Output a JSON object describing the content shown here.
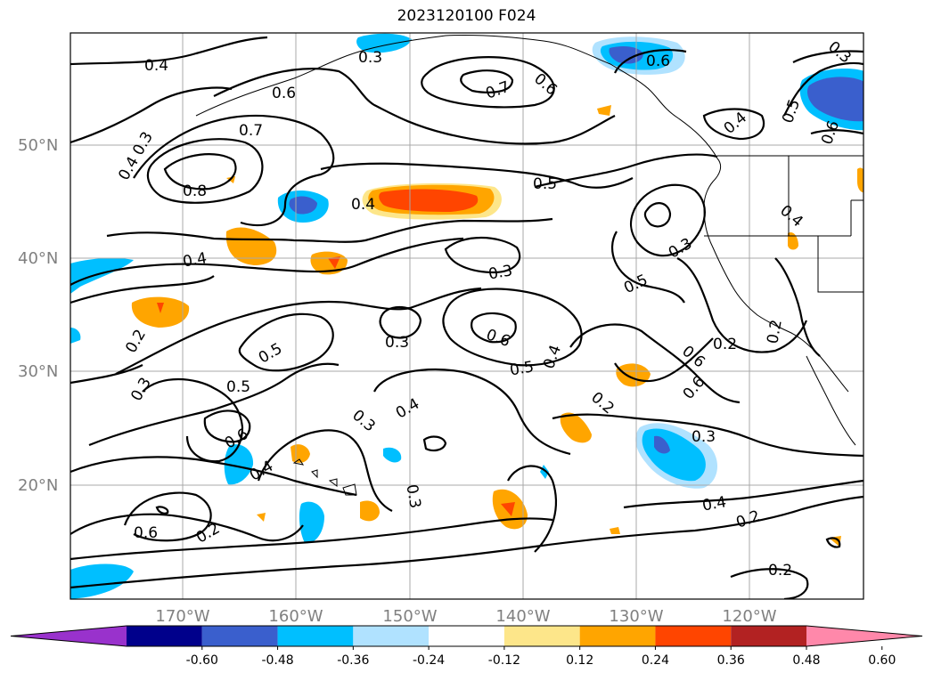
{
  "title": "2023120100 F024",
  "lat_labels": [
    "50°N",
    "40°N",
    "30°N",
    "20°N"
  ],
  "lon_labels": [
    "170°W",
    "160°W",
    "150°W",
    "140°W",
    "130°W",
    "120°W"
  ],
  "colorbar": {
    "ticks": [
      "-0.60",
      "-0.48",
      "-0.36",
      "-0.24",
      "-0.12",
      "0.12",
      "0.24",
      "0.36",
      "0.48",
      "0.60"
    ],
    "colors": [
      "#9932cc",
      "#00008b",
      "#3a5fcd",
      "#00bfff",
      "#b0e2ff",
      "#ffffff",
      "#fde68a",
      "#ffa500",
      "#ff4500",
      "#b22222",
      "#ff88aa"
    ]
  },
  "contour_labels": [
    "0.4",
    "0.6",
    "0.7",
    "0.6",
    "0.6",
    "0.3",
    "0.7",
    "0.3",
    "0.4",
    "0.8",
    "0.4",
    "0.5",
    "0.4",
    "0.3",
    "0.4",
    "0.4",
    "0.3",
    "0.5",
    "0.3",
    "0.2",
    "0.6",
    "0.5",
    "0.4",
    "0.2",
    "0.3",
    "0.5",
    "0.5",
    "0.6",
    "0.6",
    "0.4",
    "0.3",
    "0.2",
    "0.2",
    "0.6",
    "0.3",
    "0.3",
    "0.4",
    "0.2",
    "0.2",
    "0.5",
    "0.2",
    "0.6",
    "0.3",
    "0.6",
    "0.4"
  ]
}
